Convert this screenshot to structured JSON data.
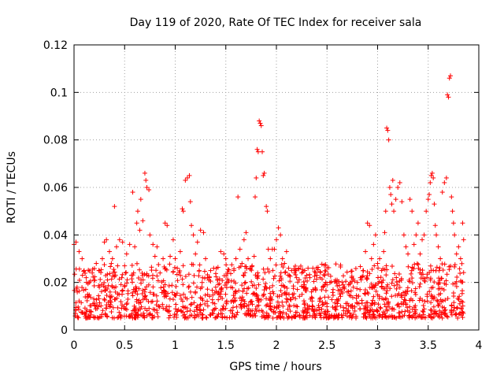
{
  "chart_data": {
    "type": "scatter",
    "title": "Day 119 of 2020, Rate Of TEC Index for receiver sala",
    "xlabel": "GPS time / hours",
    "ylabel": "ROTI / TECUs",
    "xlim": [
      0,
      4
    ],
    "ylim": [
      0,
      0.12
    ],
    "xticks": [
      0,
      0.5,
      1,
      1.5,
      2,
      2.5,
      3,
      3.5,
      4
    ],
    "xtick_labels": [
      "0",
      "0.5",
      "1",
      "1.5",
      "2",
      "2.5",
      "3",
      "3.5",
      "4"
    ],
    "yticks": [
      0,
      0.02,
      0.04,
      0.06,
      0.08,
      0.1,
      0.12
    ],
    "ytick_labels": [
      "0",
      "0.02",
      "0.04",
      "0.06",
      "0.08",
      "0.1",
      "0.12"
    ],
    "grid": true,
    "marker": "+",
    "color": "#ff0000",
    "series": [
      {
        "name": "ROTI",
        "points": [
          [
            0.0,
            0.036
          ],
          [
            0.02,
            0.037
          ],
          [
            0.03,
            0.018
          ],
          [
            0.05,
            0.033
          ],
          [
            0.08,
            0.03
          ],
          [
            0.1,
            0.025
          ],
          [
            0.12,
            0.022
          ],
          [
            0.15,
            0.02
          ],
          [
            0.18,
            0.024
          ],
          [
            0.2,
            0.021
          ],
          [
            0.22,
            0.028
          ],
          [
            0.25,
            0.018
          ],
          [
            0.28,
            0.03
          ],
          [
            0.3,
            0.037
          ],
          [
            0.32,
            0.038
          ],
          [
            0.35,
            0.033
          ],
          [
            0.38,
            0.03
          ],
          [
            0.4,
            0.052
          ],
          [
            0.42,
            0.035
          ],
          [
            0.45,
            0.038
          ],
          [
            0.48,
            0.037
          ],
          [
            0.5,
            0.027
          ],
          [
            0.52,
            0.032
          ],
          [
            0.55,
            0.036
          ],
          [
            0.58,
            0.058
          ],
          [
            0.6,
            0.035
          ],
          [
            0.62,
            0.045
          ],
          [
            0.63,
            0.05
          ],
          [
            0.65,
            0.042
          ],
          [
            0.66,
            0.055
          ],
          [
            0.68,
            0.046
          ],
          [
            0.7,
            0.066
          ],
          [
            0.71,
            0.063
          ],
          [
            0.72,
            0.06
          ],
          [
            0.74,
            0.059
          ],
          [
            0.75,
            0.04
          ],
          [
            0.78,
            0.036
          ],
          [
            0.8,
            0.031
          ],
          [
            0.82,
            0.035
          ],
          [
            0.85,
            0.024
          ],
          [
            0.88,
            0.03
          ],
          [
            0.9,
            0.045
          ],
          [
            0.92,
            0.044
          ],
          [
            0.95,
            0.031
          ],
          [
            0.98,
            0.038
          ],
          [
            1.0,
            0.03
          ],
          [
            1.02,
            0.026
          ],
          [
            1.05,
            0.033
          ],
          [
            1.07,
            0.051
          ],
          [
            1.08,
            0.05
          ],
          [
            1.1,
            0.063
          ],
          [
            1.12,
            0.064
          ],
          [
            1.14,
            0.065
          ],
          [
            1.15,
            0.054
          ],
          [
            1.16,
            0.044
          ],
          [
            1.18,
            0.04
          ],
          [
            1.2,
            0.032
          ],
          [
            1.22,
            0.037
          ],
          [
            1.25,
            0.042
          ],
          [
            1.28,
            0.041
          ],
          [
            1.3,
            0.03
          ],
          [
            1.32,
            0.022
          ],
          [
            1.35,
            0.025
          ],
          [
            1.38,
            0.026
          ],
          [
            1.4,
            0.018
          ],
          [
            1.42,
            0.021
          ],
          [
            1.45,
            0.033
          ],
          [
            1.48,
            0.032
          ],
          [
            1.5,
            0.03
          ],
          [
            1.52,
            0.02
          ],
          [
            1.55,
            0.018
          ],
          [
            1.58,
            0.025
          ],
          [
            1.6,
            0.03
          ],
          [
            1.62,
            0.056
          ],
          [
            1.64,
            0.034
          ],
          [
            1.66,
            0.028
          ],
          [
            1.68,
            0.038
          ],
          [
            1.7,
            0.041
          ],
          [
            1.72,
            0.03
          ],
          [
            1.74,
            0.026
          ],
          [
            1.76,
            0.027
          ],
          [
            1.78,
            0.031
          ],
          [
            1.79,
            0.056
          ],
          [
            1.8,
            0.064
          ],
          [
            1.81,
            0.076
          ],
          [
            1.82,
            0.075
          ],
          [
            1.83,
            0.088
          ],
          [
            1.84,
            0.087
          ],
          [
            1.85,
            0.086
          ],
          [
            1.86,
            0.075
          ],
          [
            1.87,
            0.065
          ],
          [
            1.88,
            0.066
          ],
          [
            1.9,
            0.052
          ],
          [
            1.91,
            0.05
          ],
          [
            1.92,
            0.034
          ],
          [
            1.94,
            0.03
          ],
          [
            1.96,
            0.034
          ],
          [
            1.98,
            0.034
          ],
          [
            2.0,
            0.038
          ],
          [
            2.02,
            0.043
          ],
          [
            2.04,
            0.04
          ],
          [
            2.06,
            0.03
          ],
          [
            2.08,
            0.028
          ],
          [
            2.1,
            0.033
          ],
          [
            2.12,
            0.026
          ],
          [
            2.15,
            0.025
          ],
          [
            2.18,
            0.024
          ],
          [
            2.2,
            0.022
          ],
          [
            2.22,
            0.026
          ],
          [
            2.25,
            0.024
          ],
          [
            2.28,
            0.025
          ],
          [
            2.3,
            0.023
          ],
          [
            2.33,
            0.022
          ],
          [
            2.36,
            0.026
          ],
          [
            2.4,
            0.023
          ],
          [
            2.43,
            0.022
          ],
          [
            2.46,
            0.018
          ],
          [
            2.5,
            0.019
          ],
          [
            2.53,
            0.02
          ],
          [
            2.56,
            0.017
          ],
          [
            2.6,
            0.021
          ],
          [
            2.63,
            0.017
          ],
          [
            2.66,
            0.019
          ],
          [
            2.7,
            0.016
          ],
          [
            2.73,
            0.02
          ],
          [
            2.76,
            0.018
          ],
          [
            2.8,
            0.02
          ],
          [
            2.83,
            0.022
          ],
          [
            2.86,
            0.025
          ],
          [
            2.88,
            0.033
          ],
          [
            2.9,
            0.045
          ],
          [
            2.92,
            0.044
          ],
          [
            2.94,
            0.03
          ],
          [
            2.96,
            0.036
          ],
          [
            2.98,
            0.04
          ],
          [
            3.0,
            0.028
          ],
          [
            3.02,
            0.03
          ],
          [
            3.04,
            0.025
          ],
          [
            3.06,
            0.033
          ],
          [
            3.07,
            0.041
          ],
          [
            3.08,
            0.05
          ],
          [
            3.09,
            0.085
          ],
          [
            3.1,
            0.084
          ],
          [
            3.11,
            0.08
          ],
          [
            3.12,
            0.06
          ],
          [
            3.13,
            0.057
          ],
          [
            3.14,
            0.053
          ],
          [
            3.15,
            0.063
          ],
          [
            3.16,
            0.05
          ],
          [
            3.18,
            0.055
          ],
          [
            3.2,
            0.06
          ],
          [
            3.22,
            0.062
          ],
          [
            3.24,
            0.054
          ],
          [
            3.26,
            0.04
          ],
          [
            3.28,
            0.035
          ],
          [
            3.3,
            0.032
          ],
          [
            3.32,
            0.055
          ],
          [
            3.34,
            0.05
          ],
          [
            3.36,
            0.036
          ],
          [
            3.38,
            0.04
          ],
          [
            3.4,
            0.045
          ],
          [
            3.42,
            0.032
          ],
          [
            3.44,
            0.038
          ],
          [
            3.46,
            0.04
          ],
          [
            3.48,
            0.05
          ],
          [
            3.5,
            0.055
          ],
          [
            3.51,
            0.057
          ],
          [
            3.52,
            0.062
          ],
          [
            3.53,
            0.065
          ],
          [
            3.54,
            0.066
          ],
          [
            3.55,
            0.064
          ],
          [
            3.56,
            0.053
          ],
          [
            3.57,
            0.044
          ],
          [
            3.58,
            0.04
          ],
          [
            3.6,
            0.035
          ],
          [
            3.62,
            0.03
          ],
          [
            3.64,
            0.058
          ],
          [
            3.66,
            0.062
          ],
          [
            3.68,
            0.064
          ],
          [
            3.69,
            0.099
          ],
          [
            3.7,
            0.098
          ],
          [
            3.71,
            0.106
          ],
          [
            3.72,
            0.107
          ],
          [
            3.73,
            0.056
          ],
          [
            3.74,
            0.05
          ],
          [
            3.75,
            0.045
          ],
          [
            3.76,
            0.04
          ],
          [
            3.78,
            0.032
          ],
          [
            3.8,
            0.035
          ],
          [
            3.82,
            0.03
          ],
          [
            3.84,
            0.045
          ],
          [
            3.85,
            0.038
          ]
        ],
        "baseline_band": {
          "x_range": [
            0,
            3.85
          ],
          "typical_min": 0.005,
          "typical_max": 0.028,
          "note": "dense cloud of points between roughly 0.005 and 0.028 TECUs across the whole time range"
        }
      }
    ]
  }
}
